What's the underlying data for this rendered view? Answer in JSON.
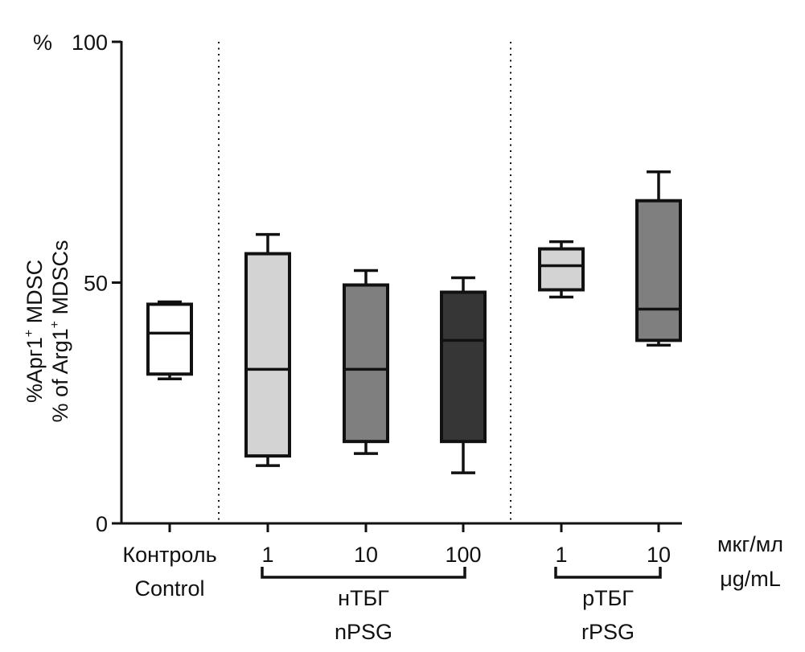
{
  "chart_data": {
    "type": "box",
    "title": "",
    "ylabel_lines": [
      "%Арг1⁺ MDSC",
      "% of Arg1⁺ MDSCs"
    ],
    "ylabel_line1_parts": {
      "pre": "%Арг1",
      "sup": "+",
      "post": " MDSC"
    },
    "ylabel_line2_parts": {
      "pre": "% of Arg1",
      "sup": "+",
      "post": " MDSCs"
    },
    "y_unit_label": "%",
    "ylim": [
      0,
      100
    ],
    "yticks": [
      0,
      50,
      100
    ],
    "ytick_labels": [
      "0",
      "50",
      "100"
    ],
    "x_unit_label": [
      "мкг/мл",
      "μg/mL"
    ],
    "categories": [
      {
        "label": "Контроль",
        "label2": "Control",
        "group": "control",
        "fill": "#ffffff",
        "whisker_low": 30,
        "q1": 31,
        "median": 39.5,
        "q3": 45.5,
        "whisker_high": 46
      },
      {
        "label": "1",
        "group": "nPSG",
        "fill": "#d3d3d3",
        "whisker_low": 12,
        "q1": 14,
        "median": 32,
        "q3": 56,
        "whisker_high": 60
      },
      {
        "label": "10",
        "group": "nPSG",
        "fill": "#7f7f7f",
        "whisker_low": 14.5,
        "q1": 17,
        "median": 32,
        "q3": 49.5,
        "whisker_high": 52.5
      },
      {
        "label": "100",
        "group": "nPSG",
        "fill": "#363636",
        "whisker_low": 10.5,
        "q1": 17,
        "median": 38,
        "q3": 48,
        "whisker_high": 51
      },
      {
        "label": "1",
        "group": "rPSG",
        "fill": "#d3d3d3",
        "whisker_low": 47,
        "q1": 48.5,
        "median": 53.5,
        "q3": 57,
        "whisker_high": 58.5
      },
      {
        "label": "10",
        "group": "rPSG",
        "fill": "#7f7f7f",
        "whisker_low": 37,
        "q1": 38,
        "median": 44.5,
        "q3": 67,
        "whisker_high": 73
      }
    ],
    "groups": [
      {
        "id": "nPSG",
        "label_ru": "нТБГ",
        "label_en": "nPSG"
      },
      {
        "id": "rPSG",
        "label_ru": "рТБГ",
        "label_en": "rPSG"
      }
    ],
    "separators": "dotted vertical lines between control / nPSG / rPSG",
    "grid": false,
    "legend": "none"
  }
}
